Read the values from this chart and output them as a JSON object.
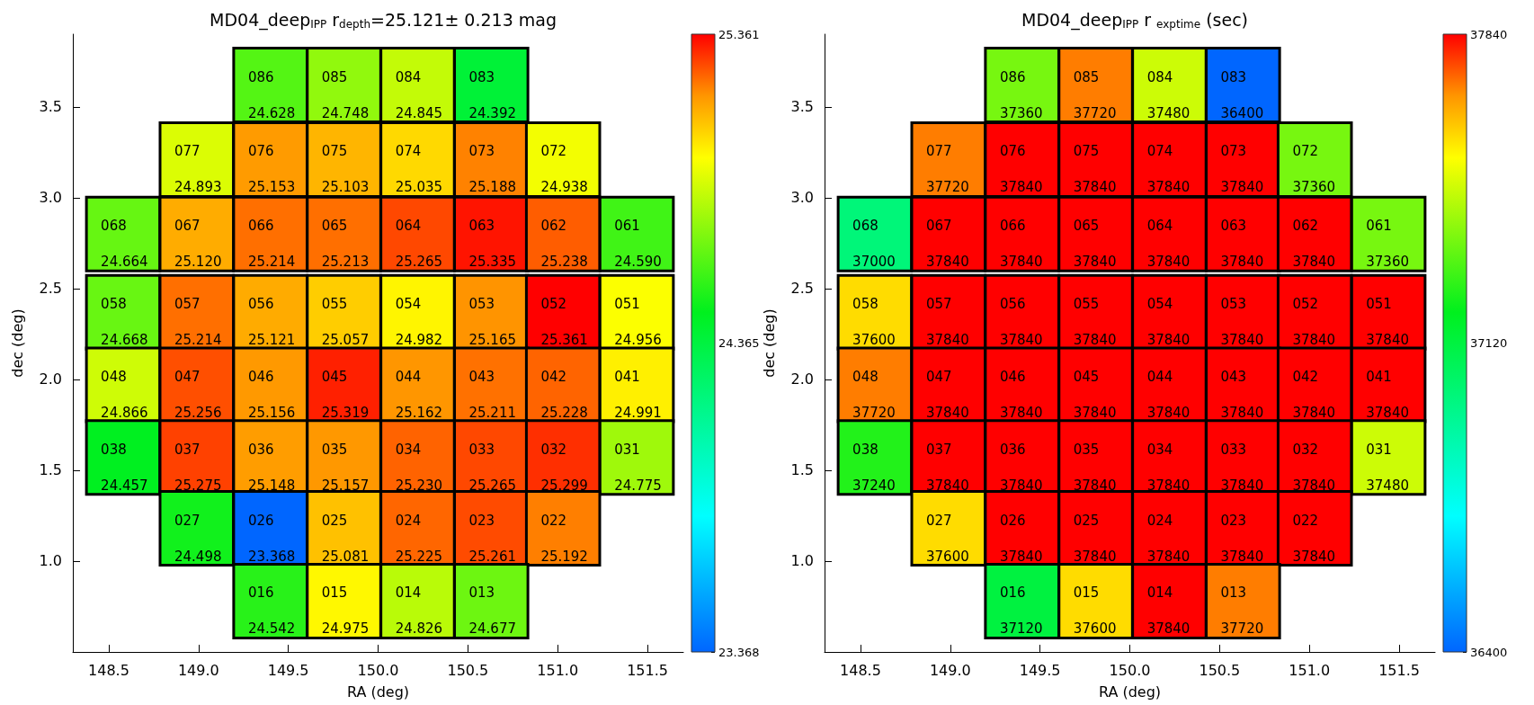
{
  "chart_data": [
    {
      "type": "heatmap",
      "title": "MD04_deep$_{IPP}$ r$_{depth}$=25.121± 0.213 mag",
      "xlabel": "RA (deg)",
      "ylabel": "dec (deg)",
      "x": [
        148.58,
        148.99,
        149.4,
        149.81,
        150.22,
        150.63,
        151.03,
        151.44
      ],
      "y": [
        3.62,
        3.21,
        2.8,
        2.37,
        1.97,
        1.57,
        1.18,
        0.78
      ],
      "xlim": [
        148.3,
        151.7
      ],
      "ylim": [
        0.5,
        3.9
      ],
      "xticks": [
        148.5,
        {
          "value": 149,
          "label": "149.0"
        },
        149.5,
        {
          "value": 150,
          "label": "150.0"
        },
        150.5,
        {
          "value": 151,
          "label": "151.0"
        },
        151.5
      ],
      "yticks": [
        {
          "value": 1,
          "label": "1.0"
        },
        1.5,
        {
          "value": 2,
          "label": "2.0"
        },
        2.5,
        {
          "value": 3,
          "label": "3.0"
        },
        3.5
      ],
      "clim": [
        23.368,
        25.361
      ],
      "cticks": [
        23.368,
        24.365,
        25.361
      ],
      "cells": [
        [
          null,
          null,
          24.628,
          24.748,
          24.845,
          24.392,
          null,
          null
        ],
        [
          null,
          24.893,
          25.153,
          25.103,
          25.035,
          25.188,
          24.938,
          null
        ],
        [
          24.664,
          25.12,
          25.214,
          25.213,
          25.265,
          25.335,
          25.238,
          24.59
        ],
        [
          24.668,
          25.214,
          25.121,
          25.057,
          24.982,
          25.165,
          25.361,
          24.956
        ],
        [
          24.866,
          25.256,
          25.156,
          25.319,
          25.162,
          25.211,
          25.228,
          24.991
        ],
        [
          24.457,
          25.275,
          25.148,
          25.157,
          25.23,
          25.265,
          25.299,
          24.775
        ],
        [
          null,
          24.498,
          23.368,
          25.081,
          25.225,
          25.261,
          25.192,
          null
        ],
        [
          null,
          null,
          24.542,
          24.975,
          24.826,
          24.677,
          null,
          null
        ]
      ],
      "cell_labels": [
        [
          null,
          null,
          "086\n24.628",
          "085\n24.748",
          "084\n24.845",
          "083\n24.392",
          null,
          null
        ],
        [
          null,
          "077\n24.893",
          "076\n25.153",
          "075\n25.103",
          "074\n25.035",
          "073\n25.188",
          "072\n24.938",
          null
        ],
        [
          "068\n24.664",
          "067\n25.120",
          "066\n25.214",
          "065\n25.213",
          "064\n25.265",
          "063\n25.335",
          "062\n25.238",
          "061\n24.590"
        ],
        [
          "058\n24.668",
          "057\n25.214",
          "056\n25.121",
          "055\n25.057",
          "054\n24.982",
          "053\n25.165",
          "052\n25.361",
          "051\n24.956"
        ],
        [
          "048\n24.866",
          "047\n25.256",
          "046\n25.156",
          "045\n25.319",
          "044\n25.162",
          "043\n25.211",
          "042\n25.228",
          "041\n24.991"
        ],
        [
          "038\n24.457",
          "037\n25.275",
          "036\n25.148",
          "035\n25.157",
          "034\n25.230",
          "033\n25.265",
          "032\n25.299",
          "031\n24.775"
        ],
        [
          null,
          "027\n24.498",
          "026\n23.368",
          "025\n25.081",
          "024\n25.225",
          "023\n25.261",
          "022\n25.192",
          null
        ],
        [
          null,
          null,
          "016\n24.542",
          "015\n24.975",
          "014\n24.826",
          "013\n24.677",
          null,
          null
        ]
      ]
    },
    {
      "type": "heatmap",
      "title": "MD04_deep$_{IPP}$ r $_{exptime}$ (sec)",
      "xlabel": "RA (deg)",
      "ylabel": "dec (deg)",
      "x": [
        148.58,
        148.99,
        149.4,
        149.81,
        150.22,
        150.63,
        151.03,
        151.44
      ],
      "y": [
        3.62,
        3.21,
        2.8,
        2.37,
        1.97,
        1.57,
        1.18,
        0.78
      ],
      "xlim": [
        148.3,
        151.7
      ],
      "ylim": [
        0.5,
        3.9
      ],
      "xticks": [
        148.5,
        {
          "value": 149,
          "label": "149.0"
        },
        149.5,
        {
          "value": 150,
          "label": "150.0"
        },
        150.5,
        {
          "value": 151,
          "label": "151.0"
        },
        151.5
      ],
      "yticks": [
        {
          "value": 1,
          "label": "1.0"
        },
        1.5,
        {
          "value": 2,
          "label": "2.0"
        },
        2.5,
        {
          "value": 3,
          "label": "3.0"
        },
        3.5
      ],
      "clim": [
        36400,
        37840
      ],
      "cticks": [
        36400,
        37120,
        37840
      ],
      "cells": [
        [
          null,
          null,
          37360,
          37720,
          37480,
          36400,
          null,
          null
        ],
        [
          null,
          37720,
          37840,
          37840,
          37840,
          37840,
          37360,
          null
        ],
        [
          37000,
          37840,
          37840,
          37840,
          37840,
          37840,
          37840,
          37360
        ],
        [
          37600,
          37840,
          37840,
          37840,
          37840,
          37840,
          37840,
          37840
        ],
        [
          37720,
          37840,
          37840,
          37840,
          37840,
          37840,
          37840,
          37840
        ],
        [
          37240,
          37840,
          37840,
          37840,
          37840,
          37840,
          37840,
          37480
        ],
        [
          null,
          37600,
          37840,
          37840,
          37840,
          37840,
          37840,
          null
        ],
        [
          null,
          null,
          37120,
          37600,
          37840,
          37720,
          null,
          null
        ]
      ],
      "cell_labels": [
        [
          null,
          null,
          "086\n37360",
          "085\n37720",
          "084\n37480",
          "083\n36400",
          null,
          null
        ],
        [
          null,
          "077\n37720",
          "076\n37840",
          "075\n37840",
          "074\n37840",
          "073\n37840",
          "072\n37360",
          null
        ],
        [
          "068\n37000",
          "067\n37840",
          "066\n37840",
          "065\n37840",
          "064\n37840",
          "063\n37840",
          "062\n37840",
          "061\n37360"
        ],
        [
          "058\n37600",
          "057\n37840",
          "056\n37840",
          "055\n37840",
          "054\n37840",
          "053\n37840",
          "052\n37840",
          "051\n37840"
        ],
        [
          "048\n37720",
          "047\n37840",
          "046\n37840",
          "045\n37840",
          "044\n37840",
          "043\n37840",
          "042\n37840",
          "041\n37840"
        ],
        [
          "038\n37240",
          "037\n37840",
          "036\n37840",
          "035\n37840",
          "034\n37840",
          "033\n37840",
          "032\n37840",
          "031\n37480"
        ],
        [
          null,
          "027\n37600",
          "026\n37840",
          "025\n37840",
          "024\n37840",
          "023\n37840",
          "022\n37840",
          null
        ],
        [
          null,
          null,
          "016\n37120",
          "015\n37600",
          "014\n37840",
          "013\n37720",
          null,
          null
        ]
      ]
    }
  ]
}
